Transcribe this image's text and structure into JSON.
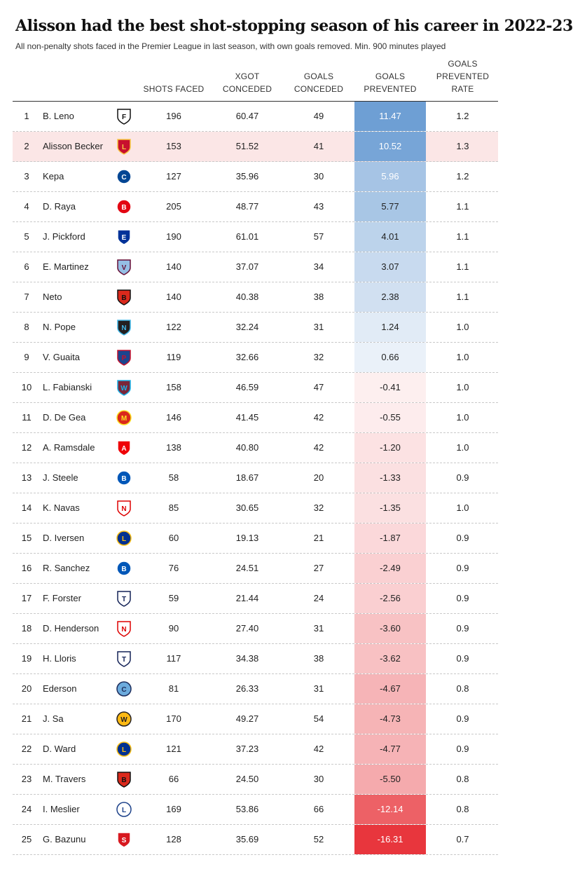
{
  "title": "Alisson had the best shot-stopping season of his career in 2022-23",
  "subtitle": "All non-penalty shots faced in the Premier League in last season, with own goals removed. Min. 900 minutes played",
  "headers": {
    "shots": "SHOTS FACED",
    "xgot": "XGOT|CONCEDED",
    "goals": "GOALS|CONCEDED",
    "prevented": "GOALS|PREVENTED",
    "rate": "GOALS|PREVENTED|RATE"
  },
  "highlight_rank": 2,
  "colors": {
    "positive": "#6e9fd4",
    "negative": "#e8363d",
    "highlight_row": "#fbe6e6"
  },
  "chart_data": {
    "type": "table",
    "columns": [
      "",
      "",
      "",
      "SHOTS FACED",
      "XGOT CONCEDED",
      "GOALS CONCEDED",
      "GOALS PREVENTED",
      "GOALS PREVENTED RATE"
    ],
    "rows": [
      {
        "rank": "1",
        "name": "B. Leno",
        "club": "fulham-crest-icon",
        "shots": "196",
        "xgot": "60.47",
        "goals": "49",
        "prevented": "11.47",
        "rate": "1.2"
      },
      {
        "rank": "2",
        "name": "Alisson Becker",
        "club": "liverpool-crest-icon",
        "shots": "153",
        "xgot": "51.52",
        "goals": "41",
        "prevented": "10.52",
        "rate": "1.3"
      },
      {
        "rank": "3",
        "name": "Kepa",
        "club": "chelsea-crest-icon",
        "shots": "127",
        "xgot": "35.96",
        "goals": "30",
        "prevented": "5.96",
        "rate": "1.2"
      },
      {
        "rank": "4",
        "name": "D. Raya",
        "club": "brentford-crest-icon",
        "shots": "205",
        "xgot": "48.77",
        "goals": "43",
        "prevented": "5.77",
        "rate": "1.1"
      },
      {
        "rank": "5",
        "name": "J. Pickford",
        "club": "everton-crest-icon",
        "shots": "190",
        "xgot": "61.01",
        "goals": "57",
        "prevented": "4.01",
        "rate": "1.1"
      },
      {
        "rank": "6",
        "name": "E. Martinez",
        "club": "aston-villa-crest-icon",
        "shots": "140",
        "xgot": "37.07",
        "goals": "34",
        "prevented": "3.07",
        "rate": "1.1"
      },
      {
        "rank": "7",
        "name": "Neto",
        "club": "bournemouth-crest-icon",
        "shots": "140",
        "xgot": "40.38",
        "goals": "38",
        "prevented": "2.38",
        "rate": "1.1"
      },
      {
        "rank": "8",
        "name": "N. Pope",
        "club": "newcastle-crest-icon",
        "shots": "122",
        "xgot": "32.24",
        "goals": "31",
        "prevented": "1.24",
        "rate": "1.0"
      },
      {
        "rank": "9",
        "name": "V. Guaita",
        "club": "crystal-palace-crest-icon",
        "shots": "119",
        "xgot": "32.66",
        "goals": "32",
        "prevented": "0.66",
        "rate": "1.0"
      },
      {
        "rank": "10",
        "name": "L. Fabianski",
        "club": "west-ham-crest-icon",
        "shots": "158",
        "xgot": "46.59",
        "goals": "47",
        "prevented": "-0.41",
        "rate": "1.0"
      },
      {
        "rank": "11",
        "name": "D. De Gea",
        "club": "man-utd-crest-icon",
        "shots": "146",
        "xgot": "41.45",
        "goals": "42",
        "prevented": "-0.55",
        "rate": "1.0"
      },
      {
        "rank": "12",
        "name": "A. Ramsdale",
        "club": "arsenal-crest-icon",
        "shots": "138",
        "xgot": "40.80",
        "goals": "42",
        "prevented": "-1.20",
        "rate": "1.0"
      },
      {
        "rank": "13",
        "name": "J. Steele",
        "club": "brighton-crest-icon",
        "shots": "58",
        "xgot": "18.67",
        "goals": "20",
        "prevented": "-1.33",
        "rate": "0.9"
      },
      {
        "rank": "14",
        "name": "K. Navas",
        "club": "nottingham-forest-crest-icon",
        "shots": "85",
        "xgot": "30.65",
        "goals": "32",
        "prevented": "-1.35",
        "rate": "1.0"
      },
      {
        "rank": "15",
        "name": "D. Iversen",
        "club": "leicester-crest-icon",
        "shots": "60",
        "xgot": "19.13",
        "goals": "21",
        "prevented": "-1.87",
        "rate": "0.9"
      },
      {
        "rank": "16",
        "name": "R. Sanchez",
        "club": "brighton-crest-icon",
        "shots": "76",
        "xgot": "24.51",
        "goals": "27",
        "prevented": "-2.49",
        "rate": "0.9"
      },
      {
        "rank": "17",
        "name": "F. Forster",
        "club": "tottenham-crest-icon",
        "shots": "59",
        "xgot": "21.44",
        "goals": "24",
        "prevented": "-2.56",
        "rate": "0.9"
      },
      {
        "rank": "18",
        "name": "D. Henderson",
        "club": "nottingham-forest-crest-icon",
        "shots": "90",
        "xgot": "27.40",
        "goals": "31",
        "prevented": "-3.60",
        "rate": "0.9"
      },
      {
        "rank": "19",
        "name": "H. Lloris",
        "club": "tottenham-crest-icon",
        "shots": "117",
        "xgot": "34.38",
        "goals": "38",
        "prevented": "-3.62",
        "rate": "0.9"
      },
      {
        "rank": "20",
        "name": "Ederson",
        "club": "man-city-crest-icon",
        "shots": "81",
        "xgot": "26.33",
        "goals": "31",
        "prevented": "-4.67",
        "rate": "0.8"
      },
      {
        "rank": "21",
        "name": "J. Sa",
        "club": "wolves-crest-icon",
        "shots": "170",
        "xgot": "49.27",
        "goals": "54",
        "prevented": "-4.73",
        "rate": "0.9"
      },
      {
        "rank": "22",
        "name": "D. Ward",
        "club": "leicester-crest-icon",
        "shots": "121",
        "xgot": "37.23",
        "goals": "42",
        "prevented": "-4.77",
        "rate": "0.9"
      },
      {
        "rank": "23",
        "name": "M. Travers",
        "club": "bournemouth-crest-icon",
        "shots": "66",
        "xgot": "24.50",
        "goals": "30",
        "prevented": "-5.50",
        "rate": "0.8"
      },
      {
        "rank": "24",
        "name": "I. Meslier",
        "club": "leeds-crest-icon",
        "shots": "169",
        "xgot": "53.86",
        "goals": "66",
        "prevented": "-12.14",
        "rate": "0.8"
      },
      {
        "rank": "25",
        "name": "G. Bazunu",
        "club": "southampton-crest-icon",
        "shots": "128",
        "xgot": "35.69",
        "goals": "52",
        "prevented": "-16.31",
        "rate": "0.7"
      }
    ]
  }
}
